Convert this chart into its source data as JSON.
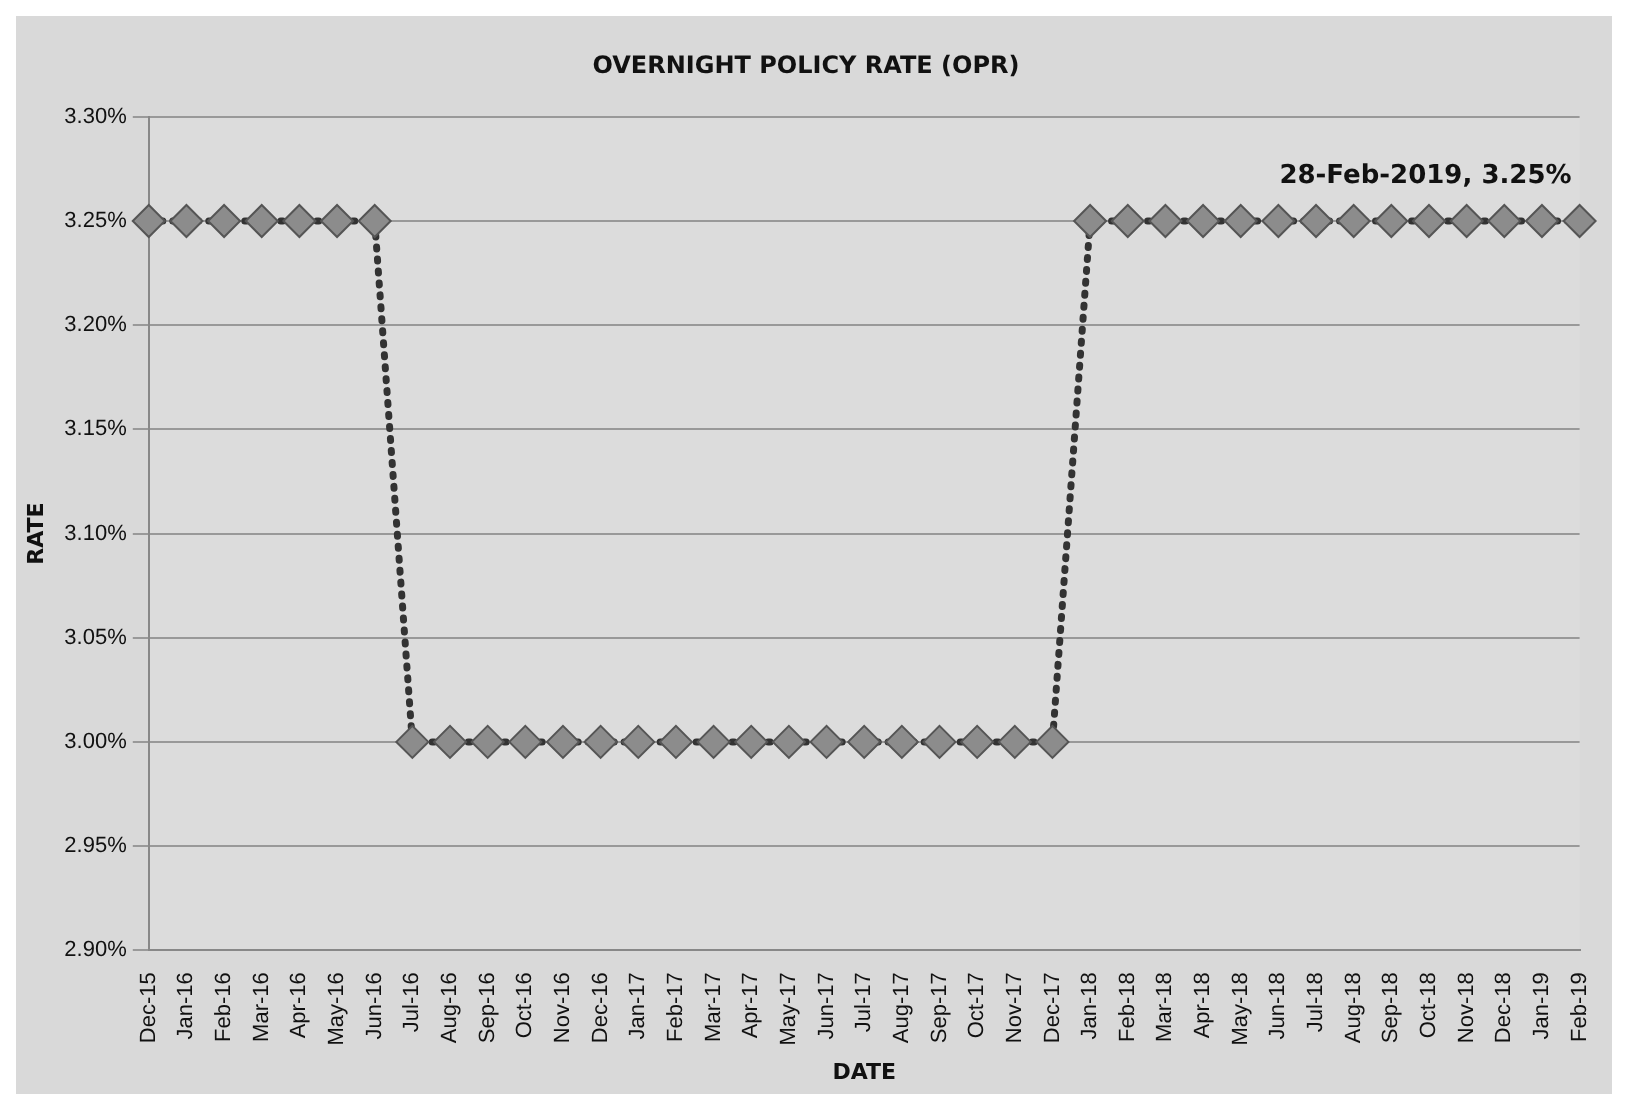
{
  "chart_data": {
    "type": "line",
    "title": "OVERNIGHT POLICY RATE (OPR)",
    "xlabel": "DATE",
    "ylabel": "RATE",
    "categories": [
      "Dec-15",
      "Jan-16",
      "Feb-16",
      "Mar-16",
      "Apr-16",
      "May-16",
      "Jun-16",
      "Jul-16",
      "Aug-16",
      "Sep-16",
      "Oct-16",
      "Nov-16",
      "Dec-16",
      "Jan-17",
      "Feb-17",
      "Mar-17",
      "Apr-17",
      "May-17",
      "Jun-17",
      "Jul-17",
      "Aug-17",
      "Sep-17",
      "Oct-17",
      "Nov-17",
      "Dec-17",
      "Jan-18",
      "Feb-18",
      "Mar-18",
      "Apr-18",
      "May-18",
      "Jun-18",
      "Jul-18",
      "Aug-18",
      "Sep-18",
      "Oct-18",
      "Nov-18",
      "Dec-18",
      "Jan-19",
      "Feb-19"
    ],
    "series": [
      {
        "color": "#333333",
        "values": [
          3.25,
          3.25,
          3.25,
          3.25,
          3.25,
          3.25,
          3.25,
          3.0,
          3.0,
          3.0,
          3.0,
          3.0,
          3.0,
          3.0,
          3.0,
          3.0,
          3.0,
          3.0,
          3.0,
          3.0,
          3.0,
          3.0,
          3.0,
          3.0,
          3.0,
          3.25,
          3.25,
          3.25,
          3.25,
          3.25,
          3.25,
          3.25,
          3.25,
          3.25,
          3.25,
          3.25,
          3.25,
          3.25,
          3.25
        ]
      }
    ],
    "ylim": [
      2.9,
      3.3
    ],
    "yticks": [
      {
        "value": 2.9,
        "label": "2.90%"
      },
      {
        "value": 2.95,
        "label": "2.95%"
      },
      {
        "value": 3.0,
        "label": "3.00%"
      },
      {
        "value": 3.05,
        "label": "3.05%"
      },
      {
        "value": 3.1,
        "label": "3.10%"
      },
      {
        "value": 3.15,
        "label": "3.15%"
      },
      {
        "value": 3.2,
        "label": "3.20%"
      },
      {
        "value": 3.25,
        "label": "3.25%"
      },
      {
        "value": 3.3,
        "label": "3.30%"
      }
    ],
    "grid": "y",
    "legend": false,
    "marker": "diamond",
    "line_style": "dotted",
    "annotations": [
      {
        "text": "28-Feb-2019, 3.25%",
        "x": "Feb-19",
        "y": 3.25
      }
    ]
  }
}
